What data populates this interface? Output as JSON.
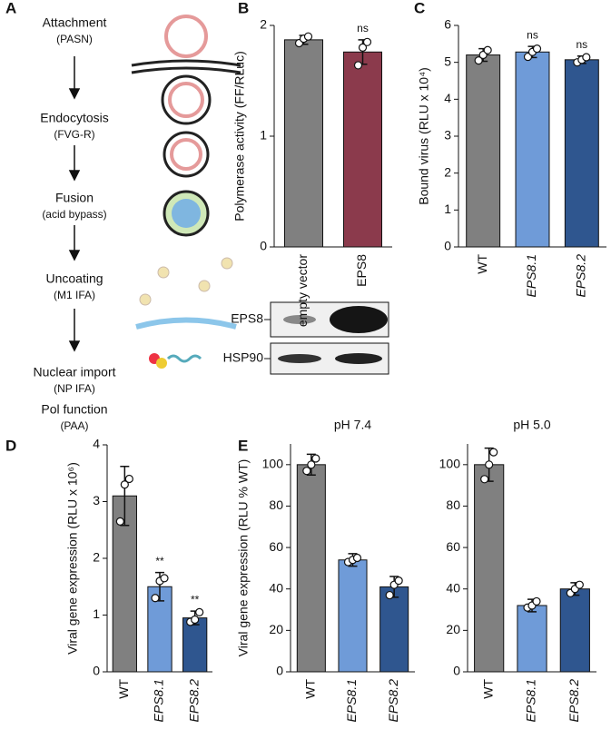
{
  "panel_labels": [
    "A",
    "B",
    "C",
    "D",
    "E"
  ],
  "diagram": {
    "steps": [
      {
        "label": "Attachment",
        "method": "(PASN)"
      },
      {
        "label": "Endocytosis",
        "method": "(FVG-R)"
      },
      {
        "label": "Fusion",
        "method": "(acid bypass)"
      },
      {
        "label": "Uncoating",
        "method": "(M1 IFA)"
      },
      {
        "label": "Nuclear import",
        "method": "(NP IFA)"
      },
      {
        "label": "Pol function",
        "method": "(PAA)"
      }
    ]
  },
  "blot": {
    "labels": [
      "EPS8",
      "HSP90"
    ]
  },
  "chart_data": [
    {
      "type": "bar",
      "y_label": "Polymerase activity (FF/RLuc)",
      "categories": [
        "empty vector",
        "EPS8"
      ],
      "values": [
        1.87,
        1.76
      ],
      "errors": [
        0.04,
        0.11
      ],
      "points": [
        [
          1.84,
          1.88,
          1.9
        ],
        [
          1.64,
          1.8,
          1.85
        ]
      ],
      "significance": [
        null,
        "ns"
      ],
      "colors": [
        "#808080",
        "#8b3a4c"
      ],
      "ylim": [
        0,
        2
      ],
      "yticks": [
        0,
        1,
        2
      ]
    },
    {
      "type": "bar",
      "y_label": "Bound virus (RLU x 10⁴)",
      "categories": [
        "WT",
        "EPS8.1",
        "EPS8.2"
      ],
      "values": [
        5.2,
        5.28,
        5.07
      ],
      "errors": [
        0.17,
        0.15,
        0.1
      ],
      "points": [
        [
          5.05,
          5.2,
          5.33
        ],
        [
          5.15,
          5.28,
          5.37
        ],
        [
          5.0,
          5.07,
          5.14
        ]
      ],
      "significance": [
        null,
        "ns",
        "ns"
      ],
      "colors": [
        "#808080",
        "#6f9bd8",
        "#2f568f"
      ],
      "ylim": [
        0,
        6
      ],
      "yticks": [
        0,
        1,
        2,
        3,
        4,
        5,
        6
      ]
    },
    {
      "type": "bar",
      "y_label": "Viral gene expression (RLU x 10⁶)",
      "categories": [
        "WT",
        "EPS8.1",
        "EPS8.2"
      ],
      "values": [
        3.1,
        1.5,
        0.95
      ],
      "errors": [
        0.52,
        0.25,
        0.12
      ],
      "points": [
        [
          2.65,
          3.3,
          3.4
        ],
        [
          1.3,
          1.6,
          1.65
        ],
        [
          0.88,
          0.92,
          1.05
        ]
      ],
      "significance": [
        null,
        "**",
        "**"
      ],
      "colors": [
        "#808080",
        "#6f9bd8",
        "#2f568f"
      ],
      "ylim": [
        0,
        4
      ],
      "yticks": [
        0,
        1,
        2,
        3,
        4
      ]
    },
    {
      "type": "bar",
      "title": "pH 7.4",
      "y_label": "Viral gene expression (RLU % WT)",
      "categories": [
        "WT",
        "EPS8.1",
        "EPS8.2"
      ],
      "values": [
        100,
        54,
        41
      ],
      "errors": [
        5,
        3,
        5
      ],
      "points": [
        [
          97,
          100,
          103
        ],
        [
          53,
          54,
          55
        ],
        [
          37,
          42,
          44
        ]
      ],
      "significance": [
        null,
        null,
        null
      ],
      "colors": [
        "#808080",
        "#6f9bd8",
        "#2f568f"
      ],
      "ylim": [
        0,
        110
      ],
      "yticks": [
        0,
        20,
        40,
        60,
        80,
        100
      ]
    },
    {
      "type": "bar",
      "title": "pH 5.0",
      "categories": [
        "WT",
        "EPS8.1",
        "EPS8.2"
      ],
      "values": [
        100,
        32,
        40
      ],
      "errors": [
        8,
        3,
        3
      ],
      "points": [
        [
          93,
          100,
          106
        ],
        [
          31,
          32,
          34
        ],
        [
          38,
          40,
          42
        ]
      ],
      "significance": [
        null,
        null,
        null
      ],
      "colors": [
        "#808080",
        "#6f9bd8",
        "#2f568f"
      ],
      "ylim": [
        0,
        110
      ],
      "yticks": [
        0,
        20,
        40,
        60,
        80,
        100
      ]
    }
  ]
}
